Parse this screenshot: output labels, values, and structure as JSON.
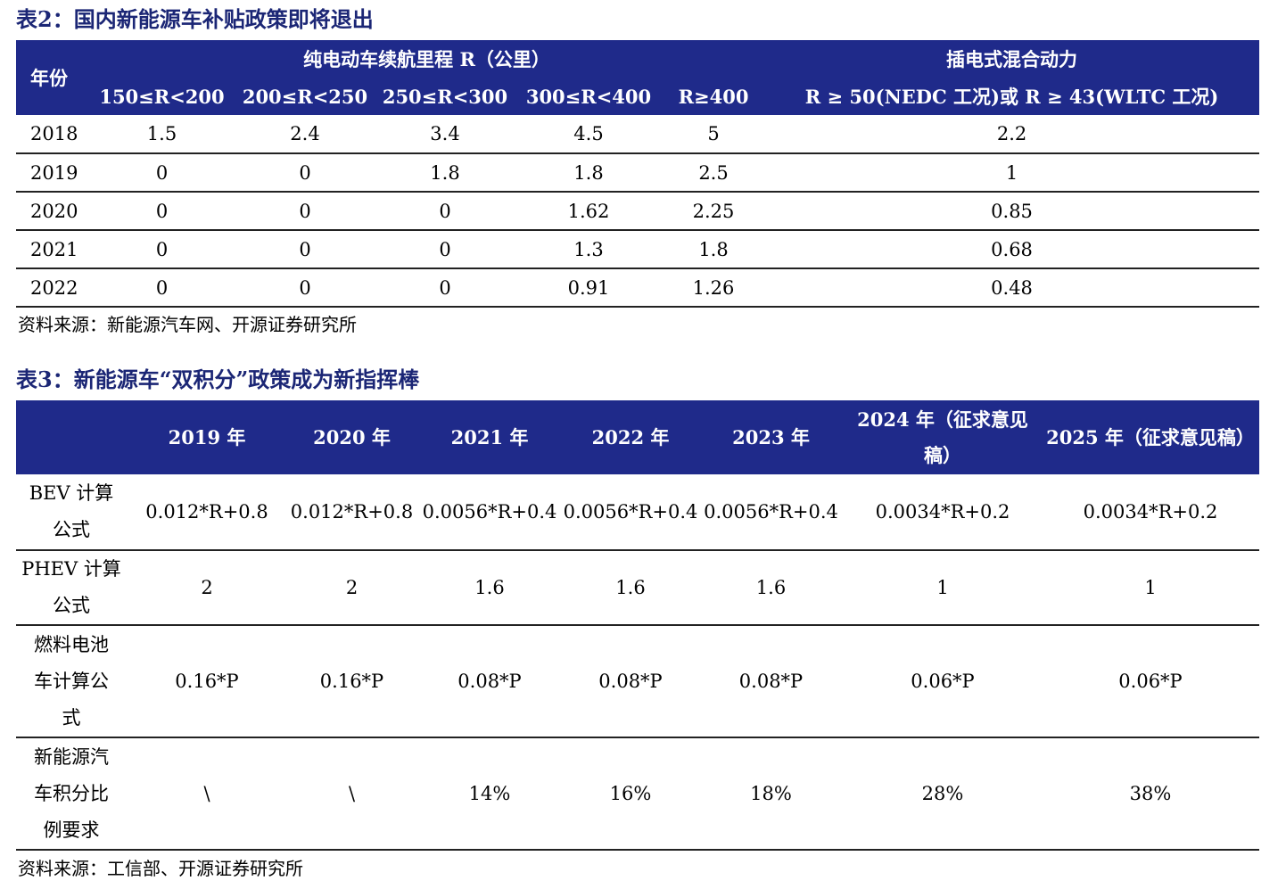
{
  "table2": {
    "title": "表2：国内新能源车补贴政策即将退出",
    "header": {
      "year": "年份",
      "bev_group": "纯电动车续航里程 R（公里）",
      "phev_group": "插电式混合动力",
      "subcolumns": [
        "150≤R<200",
        "200≤R<250",
        "250≤R<300",
        "300≤R<400",
        "R≥400",
        "R ≥ 50(NEDC 工况)或 R ≥ 43(WLTC 工况)"
      ]
    },
    "rows": [
      {
        "year": "2018",
        "values": [
          "1.5",
          "2.4",
          "3.4",
          "4.5",
          "5",
          "2.2"
        ]
      },
      {
        "year": "2019",
        "values": [
          "0",
          "0",
          "1.8",
          "1.8",
          "2.5",
          "1"
        ]
      },
      {
        "year": "2020",
        "values": [
          "0",
          "0",
          "0",
          "1.62",
          "2.25",
          "0.85"
        ]
      },
      {
        "year": "2021",
        "values": [
          "0",
          "0",
          "0",
          "1.3",
          "1.8",
          "0.68"
        ]
      },
      {
        "year": "2022",
        "values": [
          "0",
          "0",
          "0",
          "0.91",
          "1.26",
          "0.48"
        ]
      }
    ],
    "source": "资料来源：新能源汽车网、开源证券研究所"
  },
  "table3": {
    "title": "表3：新能源车“双积分”政策成为新指挥棒",
    "header": [
      "",
      "2019 年",
      "2020 年",
      "2021 年",
      "2022 年",
      "2023 年",
      "2024 年（征求意见稿）",
      "2025 年（征求意见稿）"
    ],
    "rows": [
      {
        "label": "BEV 计算公式",
        "values": [
          "0.012*R+0.8",
          "0.012*R+0.8",
          "0.0056*R+0.4",
          "0.0056*R+0.4",
          "0.0056*R+0.4",
          "0.0034*R+0.2",
          "0.0034*R+0.2"
        ]
      },
      {
        "label": "PHEV 计算公式",
        "values": [
          "2",
          "2",
          "1.6",
          "1.6",
          "1.6",
          "1",
          "1"
        ]
      },
      {
        "label": "燃料电池车计算公式",
        "values": [
          "0.16*P",
          "0.16*P",
          "0.08*P",
          "0.08*P",
          "0.08*P",
          "0.06*P",
          "0.06*P"
        ]
      },
      {
        "label": "新能源汽车积分比例要求",
        "values": [
          "\\",
          "\\",
          "14%",
          "16%",
          "18%",
          "28%",
          "38%"
        ]
      }
    ],
    "source": "资料来源：工信部、开源证券研究所"
  },
  "colors": {
    "title": "#1b2675",
    "header_bg": "#1f2a8a",
    "header_text": "#ffffff",
    "rule": "#222222"
  }
}
